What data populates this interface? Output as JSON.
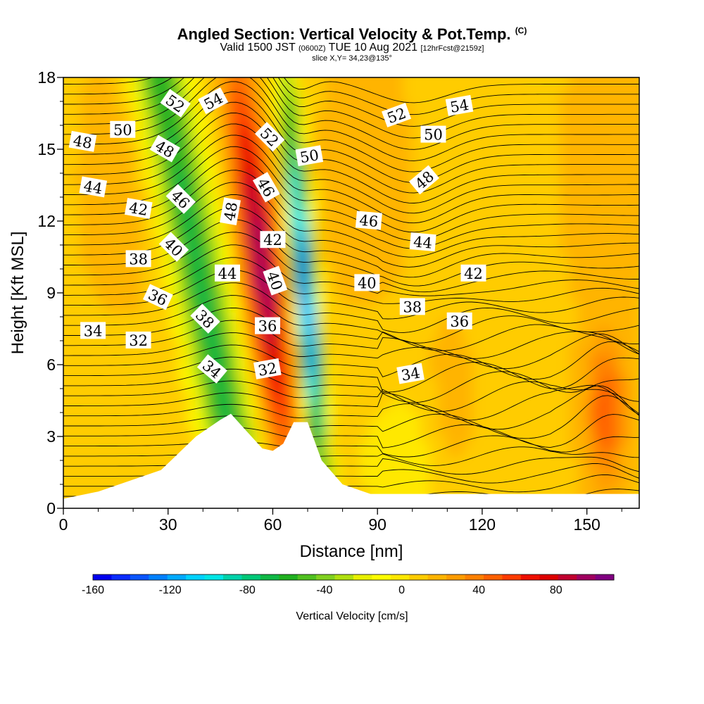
{
  "header": {
    "title": "Angled Section: Vertical Velocity & Pot.Temp.",
    "title_suffix": "(C)",
    "subtitle_a": "Valid 1500 JST",
    "subtitle_b": "(0600Z)",
    "subtitle_c": "TUE 10 Aug 2021",
    "subtitle_d": "[12hrFcst@2159z]",
    "slice": "slice X,Y= 34,23@135°"
  },
  "chart_data": {
    "type": "heatmap",
    "title": "Angled Section: Vertical Velocity & Pot.Temp.",
    "xlabel": "Distance [nm]",
    "ylabel": "Height [Kft MSL]",
    "xlim": [
      0,
      165
    ],
    "ylim": [
      0,
      18
    ],
    "x_ticks": [
      "0",
      "30",
      "60",
      "90",
      "120",
      "150"
    ],
    "y_ticks": [
      "0",
      "3",
      "6",
      "9",
      "12",
      "15",
      "18"
    ],
    "colorbar": {
      "label": "Vertical Velocity [cm/s]",
      "min": -160,
      "max": 110,
      "step": 10,
      "tick_labels": [
        "-160",
        "-120",
        "-80",
        "-40",
        "0",
        "40",
        "80"
      ],
      "colors": [
        "#0000ee",
        "#0a2cff",
        "#0a55ff",
        "#0080ff",
        "#00aaff",
        "#00d2ff",
        "#00e6e6",
        "#00d2aa",
        "#00c878",
        "#10b846",
        "#20b020",
        "#50c020",
        "#80d020",
        "#b0e010",
        "#e8f000",
        "#ffff00",
        "#ffe800",
        "#ffcc00",
        "#ffb400",
        "#ff9c00",
        "#ff8000",
        "#ff6000",
        "#ff3c00",
        "#ee1000",
        "#dd0000",
        "#c00030",
        "#a00060",
        "#800080"
      ]
    },
    "velocity_features": [
      {
        "x": 42,
        "z": 11,
        "value": -75
      },
      {
        "x": 56,
        "z": 11,
        "value": 85
      },
      {
        "x": 68,
        "z": 10,
        "value": -140
      },
      {
        "x": 156,
        "z": 4,
        "value": 40
      },
      {
        "x": 110,
        "z": 4,
        "value": 25
      }
    ],
    "terrain": [
      [
        0,
        0.4
      ],
      [
        10,
        0.7
      ],
      [
        28,
        1.6
      ],
      [
        38,
        3.0
      ],
      [
        45,
        3.7
      ],
      [
        48,
        3.95
      ],
      [
        52,
        3.3
      ],
      [
        57,
        2.5
      ],
      [
        60,
        2.4
      ],
      [
        63,
        2.7
      ],
      [
        66,
        3.6
      ],
      [
        70,
        3.6
      ],
      [
        74,
        2.0
      ],
      [
        80,
        1.0
      ],
      [
        88,
        0.6
      ],
      [
        165,
        0.6
      ]
    ],
    "isotherm_labels": [
      {
        "value": "52",
        "x": 32,
        "z": 16.9,
        "angle": 35
      },
      {
        "value": "54",
        "x": 43,
        "z": 17.0,
        "angle": -28
      },
      {
        "value": "50",
        "x": 17,
        "z": 15.8,
        "angle": 0
      },
      {
        "value": "48",
        "x": 5.5,
        "z": 15.3,
        "angle": 10
      },
      {
        "value": "48",
        "x": 29,
        "z": 15.0,
        "angle": 30
      },
      {
        "value": "52",
        "x": 59,
        "z": 15.5,
        "angle": 45
      },
      {
        "value": "50",
        "x": 70.5,
        "z": 14.7,
        "angle": -10
      },
      {
        "value": "44",
        "x": 8.5,
        "z": 13.4,
        "angle": 10
      },
      {
        "value": "42",
        "x": 21.5,
        "z": 12.5,
        "angle": 10
      },
      {
        "value": "46",
        "x": 33.5,
        "z": 12.9,
        "angle": 45
      },
      {
        "value": "48",
        "x": 48,
        "z": 12.4,
        "angle": -80
      },
      {
        "value": "46",
        "x": 58,
        "z": 13.4,
        "angle": 60
      },
      {
        "value": "42",
        "x": 60,
        "z": 11.2,
        "angle": 0
      },
      {
        "value": "38",
        "x": 21.5,
        "z": 10.4,
        "angle": 0
      },
      {
        "value": "40",
        "x": 31.5,
        "z": 10.9,
        "angle": 45
      },
      {
        "value": "44",
        "x": 47,
        "z": 9.8,
        "angle": 0
      },
      {
        "value": "40",
        "x": 60.5,
        "z": 9.5,
        "angle": 70
      },
      {
        "value": "36",
        "x": 27,
        "z": 8.8,
        "angle": 25
      },
      {
        "value": "38",
        "x": 40.5,
        "z": 7.9,
        "angle": 45
      },
      {
        "value": "36",
        "x": 58.5,
        "z": 7.6,
        "angle": 0
      },
      {
        "value": "34",
        "x": 8.5,
        "z": 7.4,
        "angle": 0
      },
      {
        "value": "32",
        "x": 21.5,
        "z": 7.0,
        "angle": 0
      },
      {
        "value": "34",
        "x": 42.5,
        "z": 5.8,
        "angle": 40
      },
      {
        "value": "32",
        "x": 58.5,
        "z": 5.8,
        "angle": -10
      },
      {
        "value": "46",
        "x": 87.5,
        "z": 12.0,
        "angle": 5
      },
      {
        "value": "44",
        "x": 103,
        "z": 11.1,
        "angle": 5
      },
      {
        "value": "42",
        "x": 117.5,
        "z": 9.8,
        "angle": 0
      },
      {
        "value": "40",
        "x": 87,
        "z": 9.4,
        "angle": 0
      },
      {
        "value": "38",
        "x": 100,
        "z": 8.4,
        "angle": 0
      },
      {
        "value": "36",
        "x": 113.5,
        "z": 7.8,
        "angle": 0
      },
      {
        "value": "34",
        "x": 99.5,
        "z": 5.6,
        "angle": -10
      },
      {
        "value": "52",
        "x": 95.5,
        "z": 16.4,
        "angle": -20
      },
      {
        "value": "54",
        "x": 113.5,
        "z": 16.8,
        "angle": -10
      },
      {
        "value": "50",
        "x": 106,
        "z": 15.6,
        "angle": 0
      },
      {
        "value": "48",
        "x": 103.5,
        "z": 13.7,
        "angle": -40
      }
    ]
  }
}
